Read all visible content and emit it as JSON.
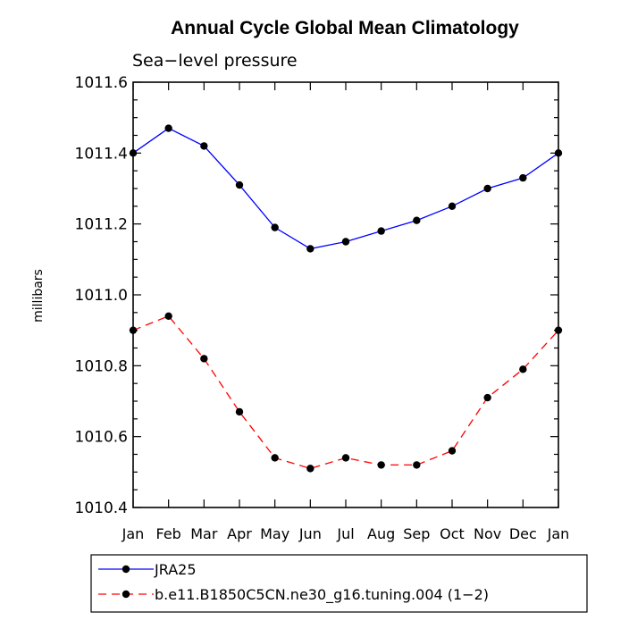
{
  "chart_data": {
    "type": "line",
    "title": "Annual Cycle Global Mean Climatology",
    "subtitle": "Sea−level pressure",
    "xlabel": "",
    "ylabel": "millibars",
    "categories": [
      "Jan",
      "Feb",
      "Mar",
      "Apr",
      "May",
      "Jun",
      "Jul",
      "Aug",
      "Sep",
      "Oct",
      "Nov",
      "Dec",
      "Jan"
    ],
    "ylim": [
      1010.4,
      1011.6
    ],
    "yticks": [
      1010.4,
      1010.6,
      1010.8,
      1011.0,
      1011.2,
      1011.4,
      1011.6
    ],
    "ytick_labels": [
      "1010.4",
      "1010.6",
      "1010.8",
      "1011.0",
      "1011.2",
      "1011.4",
      "1011.6"
    ],
    "legend_position": "bottom-left",
    "series": [
      {
        "name": "JRA25",
        "color": "#0000ff",
        "line_style": "solid",
        "marker": "filled-circle",
        "values": [
          1011.4,
          1011.47,
          1011.42,
          1011.31,
          1011.19,
          1011.13,
          1011.15,
          1011.18,
          1011.21,
          1011.25,
          1011.3,
          1011.33,
          1011.4
        ]
      },
      {
        "name": "b.e11.B1850C5CN.ne30_g16.tuning.004 (1−2)",
        "color": "#ff0000",
        "line_style": "dashed",
        "marker": "filled-circle",
        "values": [
          1010.9,
          1010.94,
          1010.82,
          1010.67,
          1010.54,
          1010.51,
          1010.54,
          1010.52,
          1010.52,
          1010.56,
          1010.71,
          1010.79,
          1010.9
        ]
      }
    ]
  }
}
